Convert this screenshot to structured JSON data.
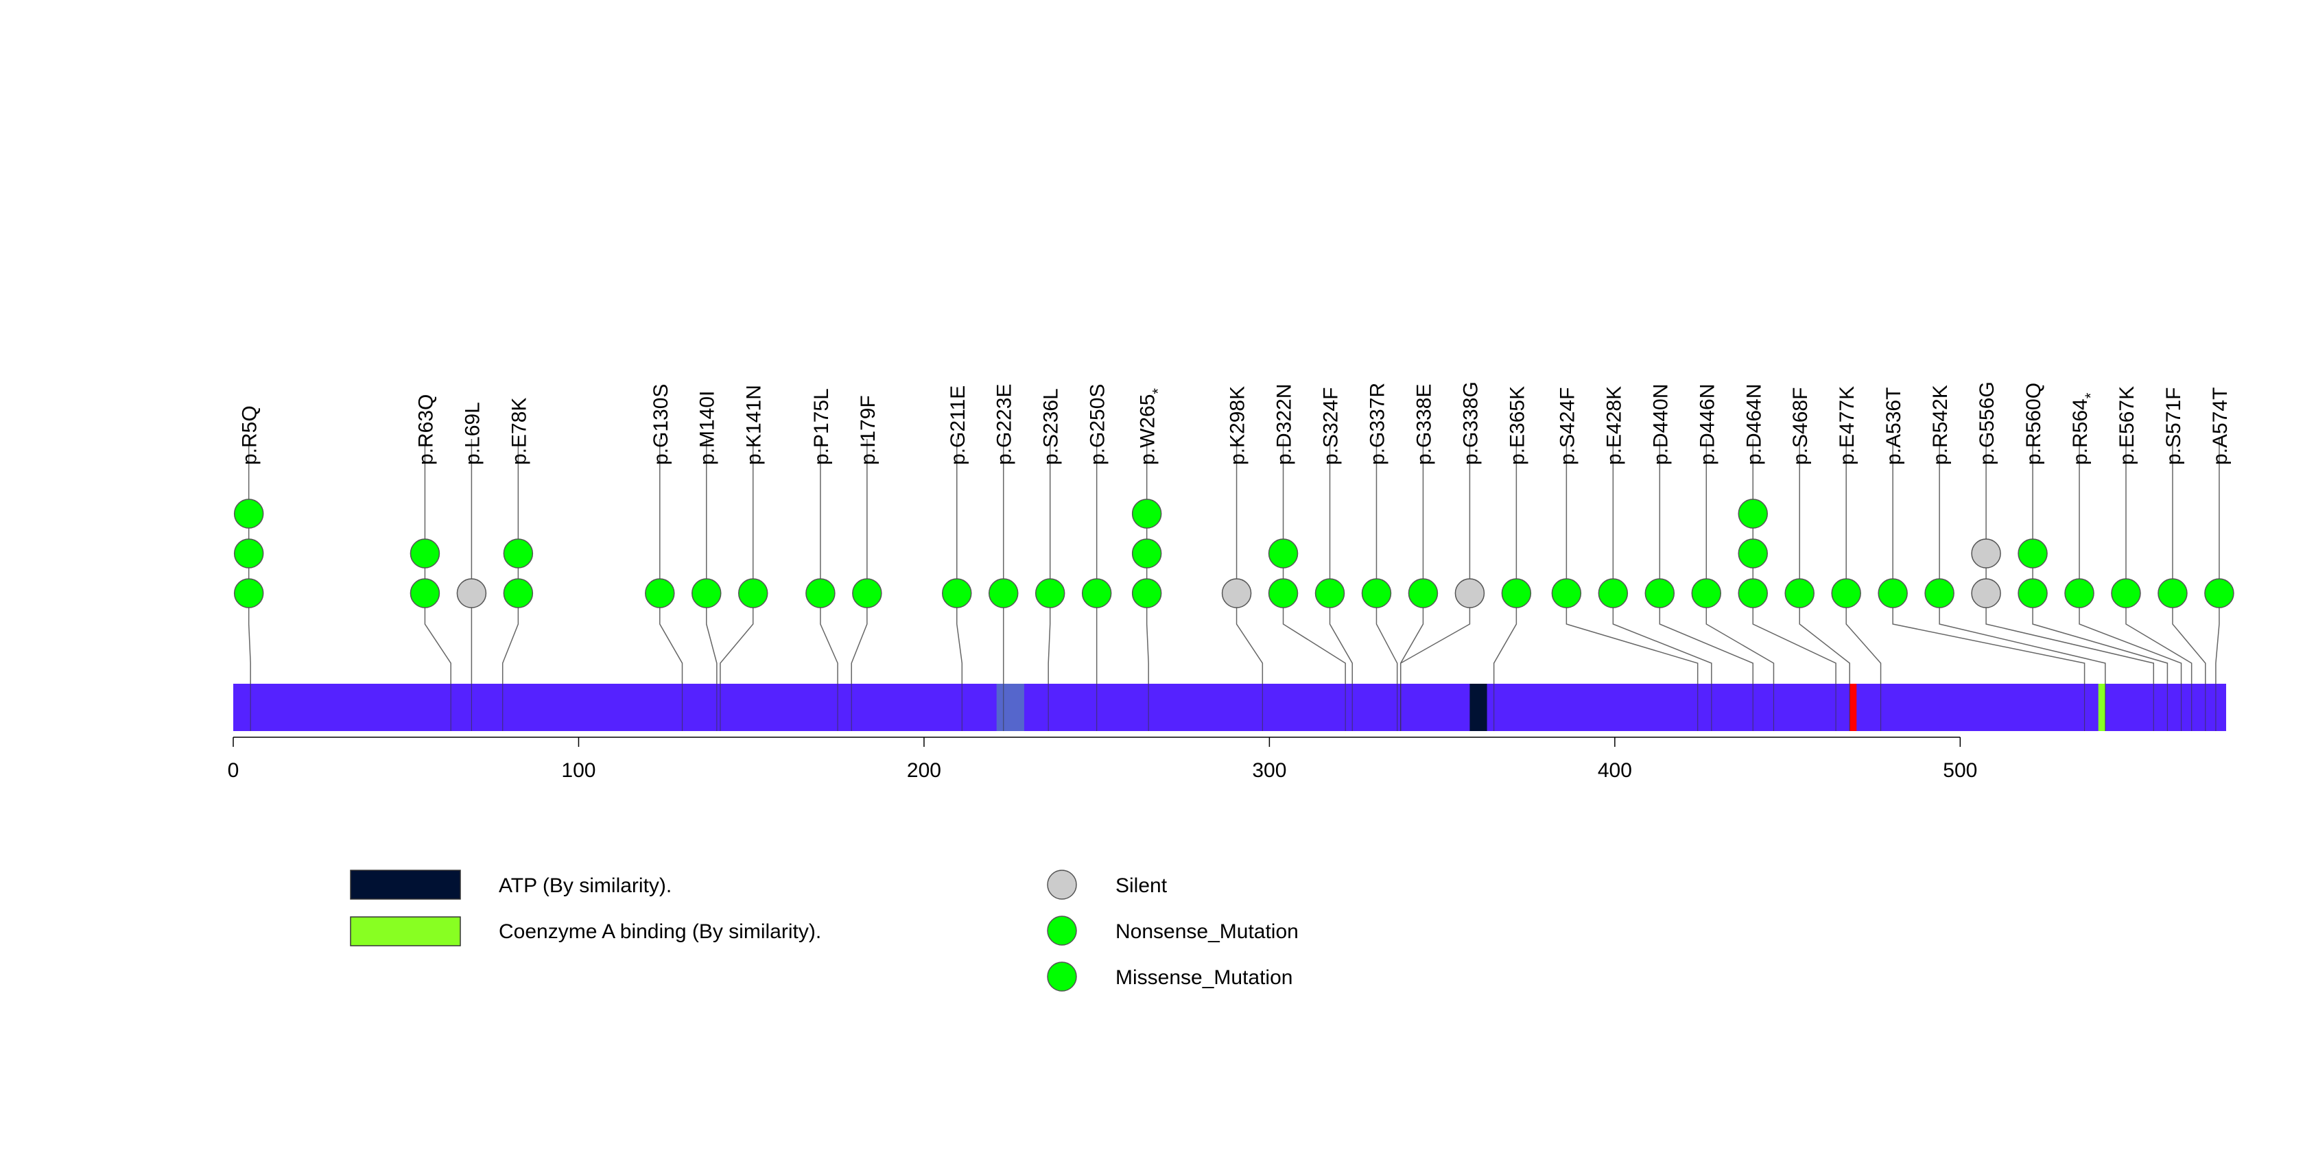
{
  "chart_data": {
    "type": "lollipop",
    "protein_length": 577,
    "xlim": [
      0,
      577
    ],
    "x_ticks": [
      0,
      100,
      200,
      300,
      400,
      500
    ],
    "colors": {
      "protein": "#5522ff",
      "stem": "#666666",
      "Silent": "#cccccc",
      "Nonsense_Mutation": "#00ff00",
      "Missense_Mutation": "#00ff00",
      "atp_domain": "#001133",
      "coa_domain": "#88ff22",
      "mid_region": "#5566cc",
      "red_band": "#ff0000"
    },
    "regions": [
      {
        "name": "ATP (By similarity).",
        "start": 358,
        "end": 363,
        "color": "#001133"
      },
      {
        "name": "Coenzyme A binding (By similarity).",
        "start": 540,
        "end": 542,
        "color": "#88ff22"
      },
      {
        "name": "",
        "start": 221,
        "end": 229,
        "color": "#5566cc"
      },
      {
        "name": "",
        "start": 468,
        "end": 470,
        "color": "#ff0000"
      }
    ],
    "mutations": [
      {
        "label": "p.R5Q",
        "star": "",
        "pos": 5,
        "anchor": 4.5,
        "types": [
          "Missense_Mutation",
          "Missense_Mutation",
          "Missense_Mutation"
        ]
      },
      {
        "label": "p.R63Q",
        "star": "",
        "pos": 63,
        "anchor": 55.5,
        "types": [
          "Missense_Mutation",
          "Missense_Mutation"
        ]
      },
      {
        "label": "p.L69L",
        "star": "",
        "pos": 69,
        "anchor": 69,
        "types": [
          "Silent"
        ]
      },
      {
        "label": "p.E78K",
        "star": "",
        "pos": 78,
        "anchor": 82.5,
        "types": [
          "Missense_Mutation",
          "Missense_Mutation"
        ]
      },
      {
        "label": "p.G130S",
        "star": "",
        "pos": 130,
        "anchor": 123.5,
        "types": [
          "Missense_Mutation"
        ]
      },
      {
        "label": "p.M140I",
        "star": "",
        "pos": 140,
        "anchor": 137,
        "types": [
          "Missense_Mutation"
        ]
      },
      {
        "label": "p.K141N",
        "star": "",
        "pos": 141,
        "anchor": 150.5,
        "types": [
          "Missense_Mutation"
        ]
      },
      {
        "label": "p.P175L",
        "star": "",
        "pos": 175,
        "anchor": 170,
        "types": [
          "Missense_Mutation"
        ]
      },
      {
        "label": "p.I179F",
        "star": "",
        "pos": 179,
        "anchor": 183.5,
        "types": [
          "Missense_Mutation"
        ]
      },
      {
        "label": "p.G211E",
        "star": "",
        "pos": 211,
        "anchor": 209.5,
        "types": [
          "Missense_Mutation"
        ]
      },
      {
        "label": "p.G223E",
        "star": "",
        "pos": 223,
        "anchor": 223,
        "types": [
          "Missense_Mutation"
        ]
      },
      {
        "label": "p.S236L",
        "star": "",
        "pos": 236,
        "anchor": 236.5,
        "types": [
          "Missense_Mutation"
        ]
      },
      {
        "label": "p.G250S",
        "star": "",
        "pos": 250,
        "anchor": 250,
        "types": [
          "Missense_Mutation"
        ]
      },
      {
        "label": "p.W265",
        "star": "*",
        "pos": 265,
        "anchor": 264.5,
        "types": [
          "Nonsense_Mutation",
          "Nonsense_Mutation",
          "Nonsense_Mutation"
        ]
      },
      {
        "label": "p.K298K",
        "star": "",
        "pos": 298,
        "anchor": 290.5,
        "types": [
          "Silent"
        ]
      },
      {
        "label": "p.D322N",
        "star": "",
        "pos": 322,
        "anchor": 304,
        "types": [
          "Missense_Mutation",
          "Missense_Mutation"
        ]
      },
      {
        "label": "p.S324F",
        "star": "",
        "pos": 324,
        "anchor": 317.5,
        "types": [
          "Missense_Mutation"
        ]
      },
      {
        "label": "p.G337R",
        "star": "",
        "pos": 337,
        "anchor": 331,
        "types": [
          "Missense_Mutation"
        ]
      },
      {
        "label": "p.G338E",
        "star": "",
        "pos": 338,
        "anchor": 344.5,
        "types": [
          "Missense_Mutation"
        ]
      },
      {
        "label": "p.G338G",
        "star": "",
        "pos": 338,
        "anchor": 358,
        "types": [
          "Silent"
        ]
      },
      {
        "label": "p.E365K",
        "star": "",
        "pos": 365,
        "anchor": 371.5,
        "types": [
          "Missense_Mutation"
        ]
      },
      {
        "label": "p.S424F",
        "star": "",
        "pos": 424,
        "anchor": 386,
        "types": [
          "Missense_Mutation"
        ]
      },
      {
        "label": "p.E428K",
        "star": "",
        "pos": 428,
        "anchor": 399.5,
        "types": [
          "Missense_Mutation"
        ]
      },
      {
        "label": "p.D440N",
        "star": "",
        "pos": 440,
        "anchor": 413,
        "types": [
          "Missense_Mutation"
        ]
      },
      {
        "label": "p.D446N",
        "star": "",
        "pos": 446,
        "anchor": 426.5,
        "types": [
          "Missense_Mutation"
        ]
      },
      {
        "label": "p.D464N",
        "star": "",
        "pos": 464,
        "anchor": 440,
        "types": [
          "Missense_Mutation",
          "Missense_Mutation",
          "Missense_Mutation"
        ]
      },
      {
        "label": "p.S468F",
        "star": "",
        "pos": 468,
        "anchor": 453.5,
        "types": [
          "Missense_Mutation"
        ]
      },
      {
        "label": "p.E477K",
        "star": "",
        "pos": 477,
        "anchor": 467,
        "types": [
          "Missense_Mutation"
        ]
      },
      {
        "label": "p.A536T",
        "star": "",
        "pos": 536,
        "anchor": 480.5,
        "types": [
          "Missense_Mutation"
        ]
      },
      {
        "label": "p.R542K",
        "star": "",
        "pos": 542,
        "anchor": 494,
        "types": [
          "Missense_Mutation"
        ]
      },
      {
        "label": "p.G556G",
        "star": "",
        "pos": 556,
        "anchor": 507.5,
        "types": [
          "Silent",
          "Silent"
        ]
      },
      {
        "label": "p.R560Q",
        "star": "",
        "pos": 560,
        "anchor": 521,
        "types": [
          "Missense_Mutation",
          "Missense_Mutation"
        ]
      },
      {
        "label": "p.R564",
        "star": "*",
        "pos": 564,
        "anchor": 534.5,
        "types": [
          "Nonsense_Mutation"
        ]
      },
      {
        "label": "p.E567K",
        "star": "",
        "pos": 567,
        "anchor": 548,
        "types": [
          "Missense_Mutation"
        ]
      },
      {
        "label": "p.S571F",
        "star": "",
        "pos": 571,
        "anchor": 561.5,
        "types": [
          "Missense_Mutation"
        ]
      },
      {
        "label": "p.A574T",
        "star": "",
        "pos": 574,
        "anchor": 575,
        "types": [
          "Missense_Mutation"
        ]
      }
    ],
    "region_legend": [
      {
        "label": "ATP (By similarity).",
        "color": "#001133"
      },
      {
        "label": "Coenzyme A binding (By similarity).",
        "color": "#88ff22"
      }
    ],
    "mutation_legend": [
      {
        "label": "Silent",
        "color": "#cccccc"
      },
      {
        "label": "Nonsense_Mutation",
        "color": "#00ff00"
      },
      {
        "label": "Missense_Mutation",
        "color": "#00ff00"
      }
    ]
  }
}
